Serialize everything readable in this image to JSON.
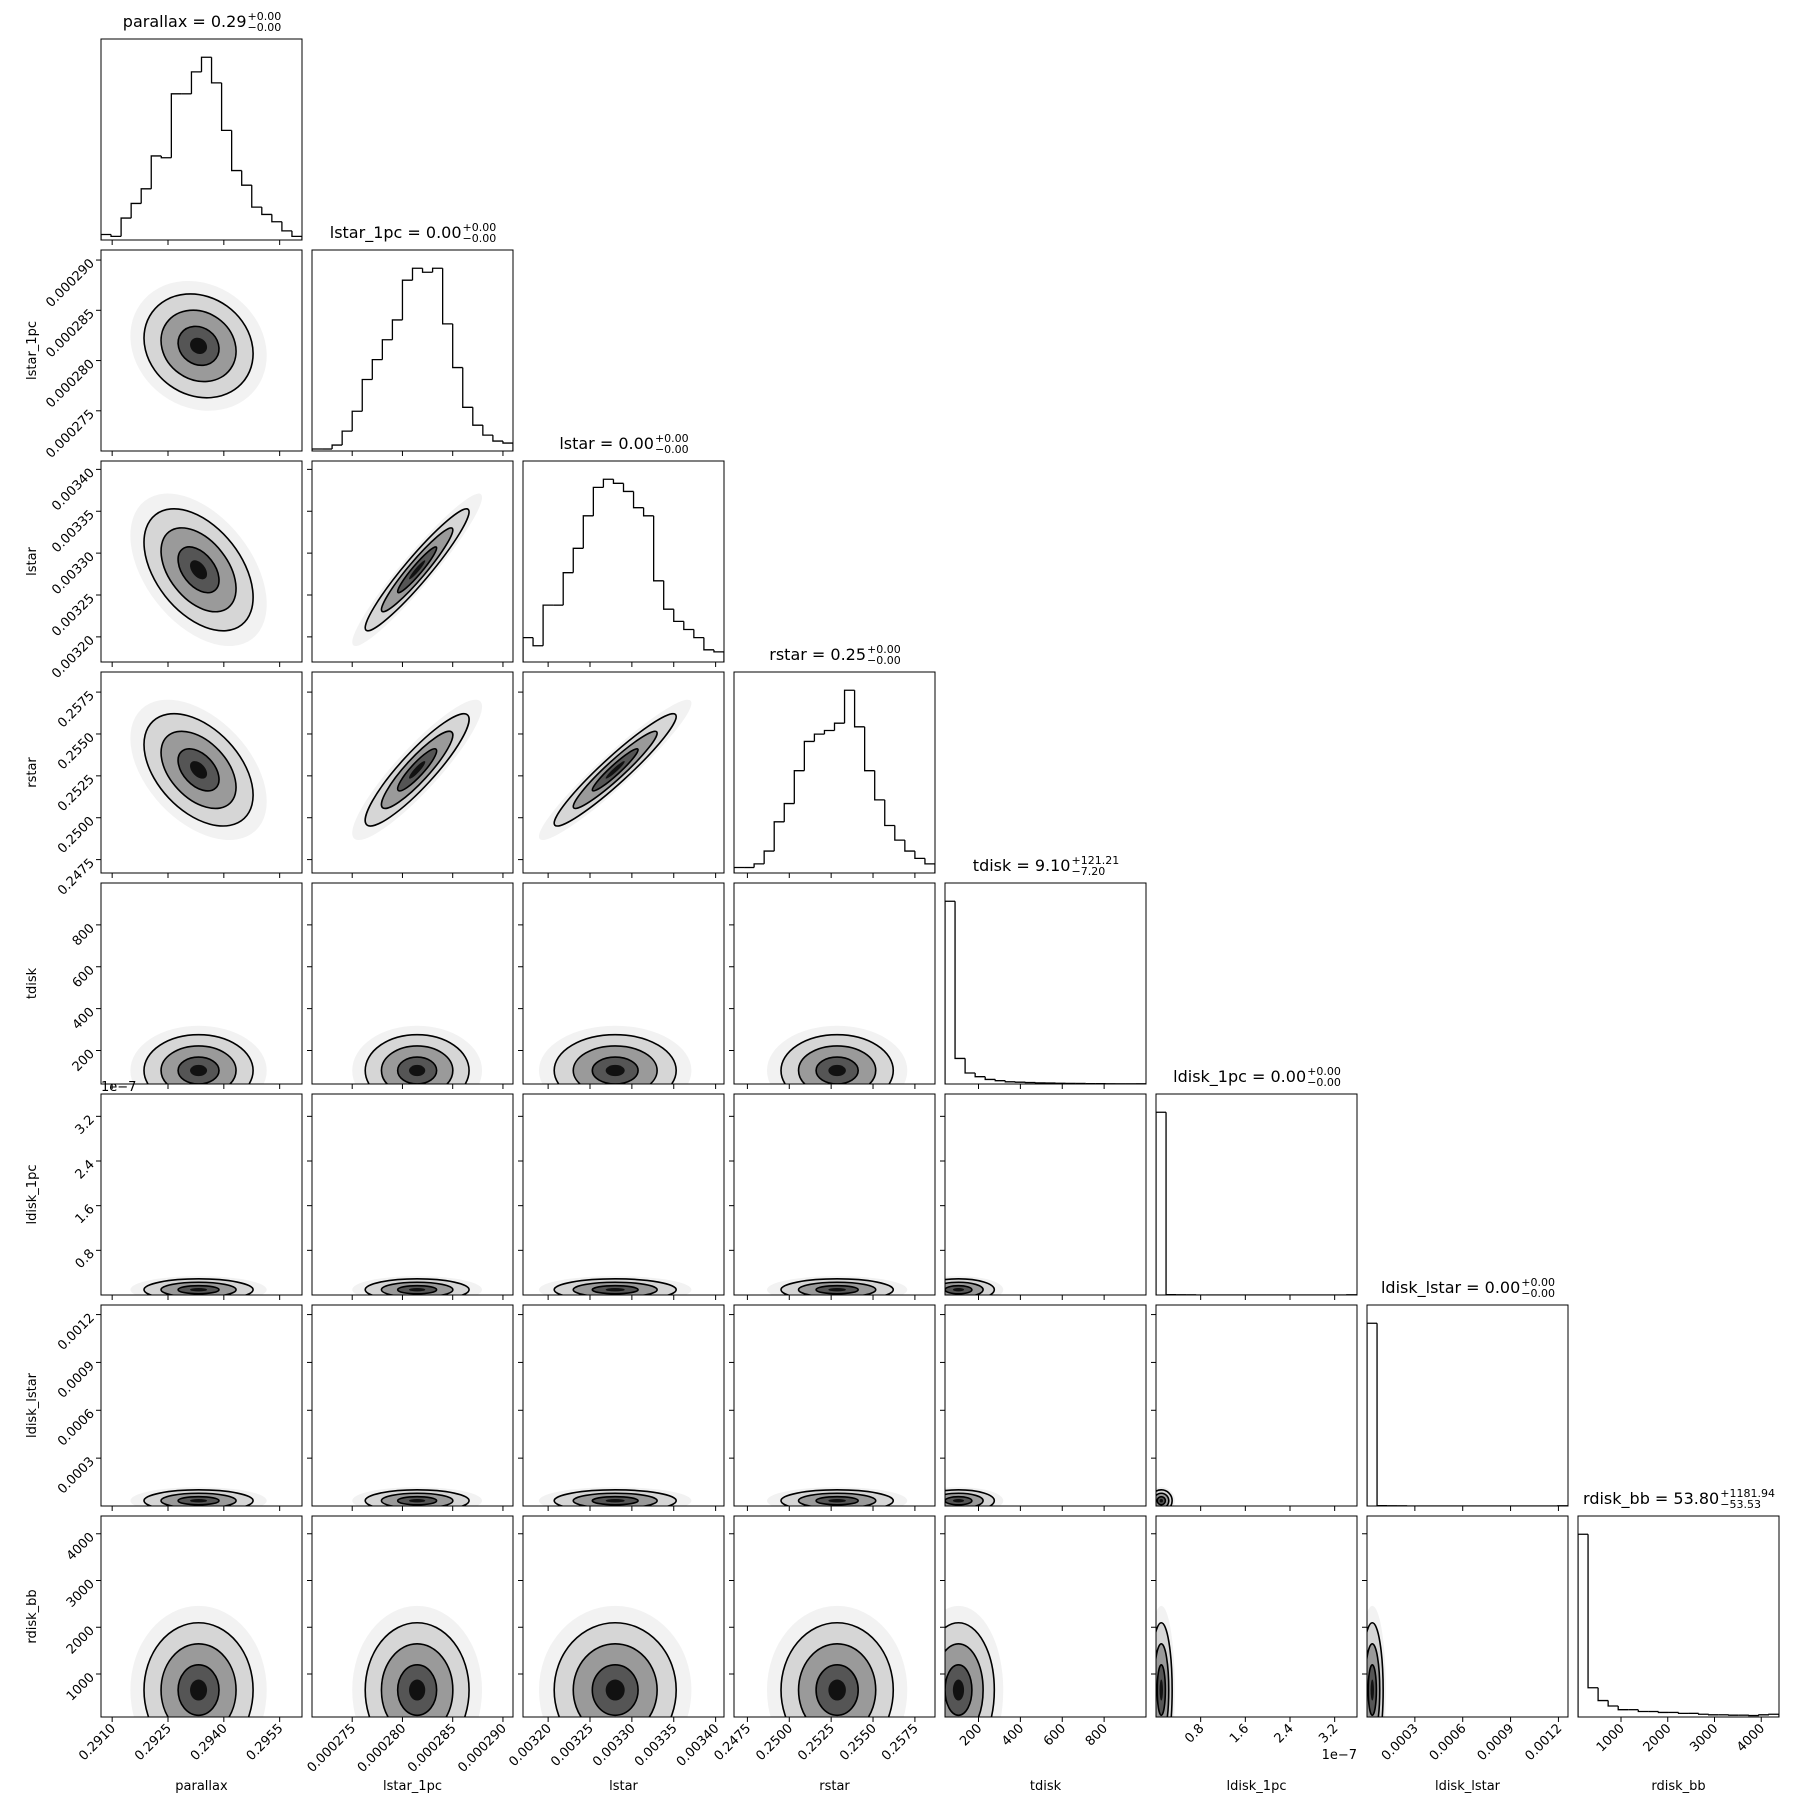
{
  "chart_data": {
    "type": "corner",
    "parameters": [
      {
        "name": "parallax",
        "title": "parallax = 0.29",
        "err_plus": "+0.00",
        "err_minus": "−0.00",
        "lim": [
          0.2907,
          0.2961
        ],
        "ticks": [
          {
            "value": 0.291,
            "label": "0.2910"
          },
          0.2925,
          {
            "value": 0.294,
            "label": "0.2940"
          },
          0.2955
        ],
        "bins": [
          0.2907,
          0.29097,
          0.29124,
          0.29151,
          0.29178,
          0.29205,
          0.29232,
          0.29259,
          0.29286,
          0.29313,
          0.2934,
          0.29367,
          0.29394,
          0.29421,
          0.29448,
          0.29475,
          0.29502,
          0.29529,
          0.29556,
          0.29583,
          0.2961
        ],
        "counts": [
          3,
          2,
          12,
          20,
          28,
          46,
          45,
          80,
          80,
          92,
          100,
          86,
          60,
          38,
          30,
          18,
          14,
          10,
          5,
          2
        ]
      },
      {
        "name": "lstar_1pc",
        "title": "lstar_1pc = 0.00",
        "err_plus": "+0.00",
        "err_minus": "−0.00",
        "lim": [
          0.000271,
          0.000291
        ],
        "ticks": [
          0.000275,
          {
            "value": 0.00028,
            "label": "0.000280"
          },
          0.000285,
          {
            "value": 0.00029,
            "label": "0.000290"
          }
        ],
        "bins": [
          0.000271,
          0.000272,
          0.000273,
          0.000274,
          0.000275,
          0.000276,
          0.000277,
          0.000278,
          0.000279,
          0.00028,
          0.000281,
          0.000282,
          0.000283,
          0.000284,
          0.000285,
          0.000286,
          0.000287,
          0.000288,
          0.000289,
          0.00029,
          0.000291
        ],
        "counts": [
          1,
          1,
          3,
          10,
          20,
          36,
          46,
          56,
          66,
          86,
          92,
          90,
          92,
          64,
          42,
          22,
          13,
          8,
          5,
          4
        ]
      },
      {
        "name": "lstar",
        "title": "lstar = 0.00",
        "err_plus": "+0.00",
        "err_minus": "−0.00",
        "lim": [
          0.00317,
          0.00341
        ],
        "ticks": [
          {
            "value": 0.0032,
            "label": "0.00320"
          },
          0.00325,
          {
            "value": 0.0033,
            "label": "0.00330"
          },
          0.00335,
          {
            "value": 0.0034,
            "label": "0.00340"
          }
        ],
        "bins": [
          0.00317,
          0.003182,
          0.003194,
          0.003206,
          0.003218,
          0.00323,
          0.003242,
          0.003254,
          0.003266,
          0.003278,
          0.00329,
          0.003302,
          0.003314,
          0.003326,
          0.003338,
          0.00335,
          0.003362,
          0.003374,
          0.003386,
          0.003398,
          0.00341
        ],
        "counts": [
          12,
          8,
          28,
          28,
          44,
          56,
          72,
          86,
          90,
          88,
          84,
          76,
          72,
          40,
          26,
          20,
          16,
          12,
          6,
          5
        ]
      },
      {
        "name": "rstar",
        "title": "rstar = 0.25",
        "err_plus": "+0.00",
        "err_minus": "−0.00",
        "lim": [
          0.2467,
          0.2587
        ],
        "ticks": [
          0.2475,
          {
            "value": 0.25,
            "label": "0.2500"
          },
          0.2525,
          {
            "value": 0.255,
            "label": "0.2550"
          },
          0.2575
        ],
        "bins": [
          0.2467,
          0.2473,
          0.2479,
          0.2485,
          0.2491,
          0.2497,
          0.2503,
          0.2509,
          0.2515,
          0.2521,
          0.2527,
          0.2533,
          0.2539,
          0.2545,
          0.2551,
          0.2557,
          0.2563,
          0.2569,
          0.2575,
          0.2581,
          0.2587
        ],
        "counts": [
          3,
          3,
          5,
          12,
          28,
          38,
          56,
          72,
          76,
          78,
          82,
          100,
          80,
          56,
          40,
          26,
          18,
          12,
          8,
          5
        ]
      },
      {
        "name": "tdisk",
        "title": "tdisk = 9.10",
        "err_plus": "+121.21",
        "err_minus": "−7.20",
        "lim": [
          40,
          1000
        ],
        "ticks": [
          200,
          400,
          600,
          800
        ],
        "bins": [
          40,
          88,
          136,
          184,
          232,
          280,
          328,
          376,
          424,
          472,
          520,
          568,
          616,
          664,
          712,
          760,
          808,
          856,
          904,
          952,
          1000
        ],
        "counts": [
          1000,
          140,
          60,
          40,
          25,
          18,
          12,
          10,
          8,
          6,
          5,
          4,
          3,
          3,
          2,
          2,
          1,
          1,
          1,
          1
        ]
      },
      {
        "name": "ldisk_1pc",
        "title": "ldisk_1pc = 0.00",
        "err_plus": "+0.00",
        "err_minus": "−0.00",
        "lim": [
          0,
          3.6e-07
        ],
        "offset_label": "1e−7",
        "ticks": [
          {
            "value": 8e-08,
            "label": "0.8"
          },
          {
            "value": 1.6e-07,
            "label": "1.6"
          },
          {
            "value": 2.4e-07,
            "label": "2.4"
          },
          {
            "value": 3.2e-07,
            "label": "3.2"
          }
        ],
        "bins": [
          0,
          1.8e-08,
          3.6e-08,
          5.4e-08,
          7.2e-08,
          9e-08,
          1.08e-07,
          1.26e-07,
          1.44e-07,
          1.62e-07,
          1.8e-07,
          1.98e-07,
          2.16e-07,
          2.34e-07,
          2.52e-07,
          2.7e-07,
          2.88e-07,
          3.06e-07,
          3.24e-07,
          3.42e-07,
          3.6e-07
        ],
        "counts": [
          1000,
          2,
          1,
          1,
          0,
          0,
          0,
          0,
          0,
          0,
          0,
          0,
          0,
          0,
          0,
          0,
          0,
          0,
          0,
          1
        ]
      },
      {
        "name": "ldisk_lstar",
        "title": "ldisk_lstar = 0.00",
        "err_plus": "+0.00",
        "err_minus": "−0.00",
        "lim": [
          0,
          0.00126
        ],
        "ticks": [
          0.0003,
          0.0006,
          0.0009,
          0.0012
        ],
        "bins": [
          0,
          6.3e-05,
          0.000126,
          0.000189,
          0.000252,
          0.000315,
          0.000378,
          0.000441,
          0.000504,
          0.000567,
          0.00063,
          0.000693,
          0.000756,
          0.000819,
          0.000882,
          0.000945,
          0.001008,
          0.001071,
          0.001134,
          0.001197,
          0.00126
        ],
        "counts": [
          1000,
          2,
          1,
          1,
          0,
          0,
          0,
          0,
          0,
          0,
          0,
          0,
          0,
          0,
          0,
          0,
          0,
          0,
          0,
          1
        ]
      },
      {
        "name": "rdisk_bb",
        "title": "rdisk_bb = 53.80",
        "err_plus": "+1181.94",
        "err_minus": "−53.53",
        "lim": [
          80,
          4380
        ],
        "ticks": [
          1000,
          2000,
          3000,
          4000
        ],
        "bins": [
          80,
          295,
          510,
          725,
          940,
          1155,
          1370,
          1585,
          1800,
          2015,
          2230,
          2445,
          2660,
          2875,
          3090,
          3305,
          3520,
          3735,
          3950,
          4165,
          4380
        ],
        "counts": [
          1000,
          160,
          90,
          60,
          40,
          40,
          30,
          30,
          25,
          25,
          20,
          20,
          15,
          12,
          12,
          10,
          10,
          8,
          12,
          15
        ]
      }
    ],
    "correlations": [
      [
        -0.15
      ],
      [
        -0.45,
        0.95
      ],
      [
        -0.45,
        0.9,
        0.95
      ],
      [
        0,
        0,
        0,
        0
      ],
      [
        0,
        0,
        0,
        0,
        0
      ],
      [
        0,
        0,
        0,
        0,
        0,
        0
      ],
      [
        0,
        0,
        0,
        0,
        0,
        0,
        0
      ]
    ]
  }
}
